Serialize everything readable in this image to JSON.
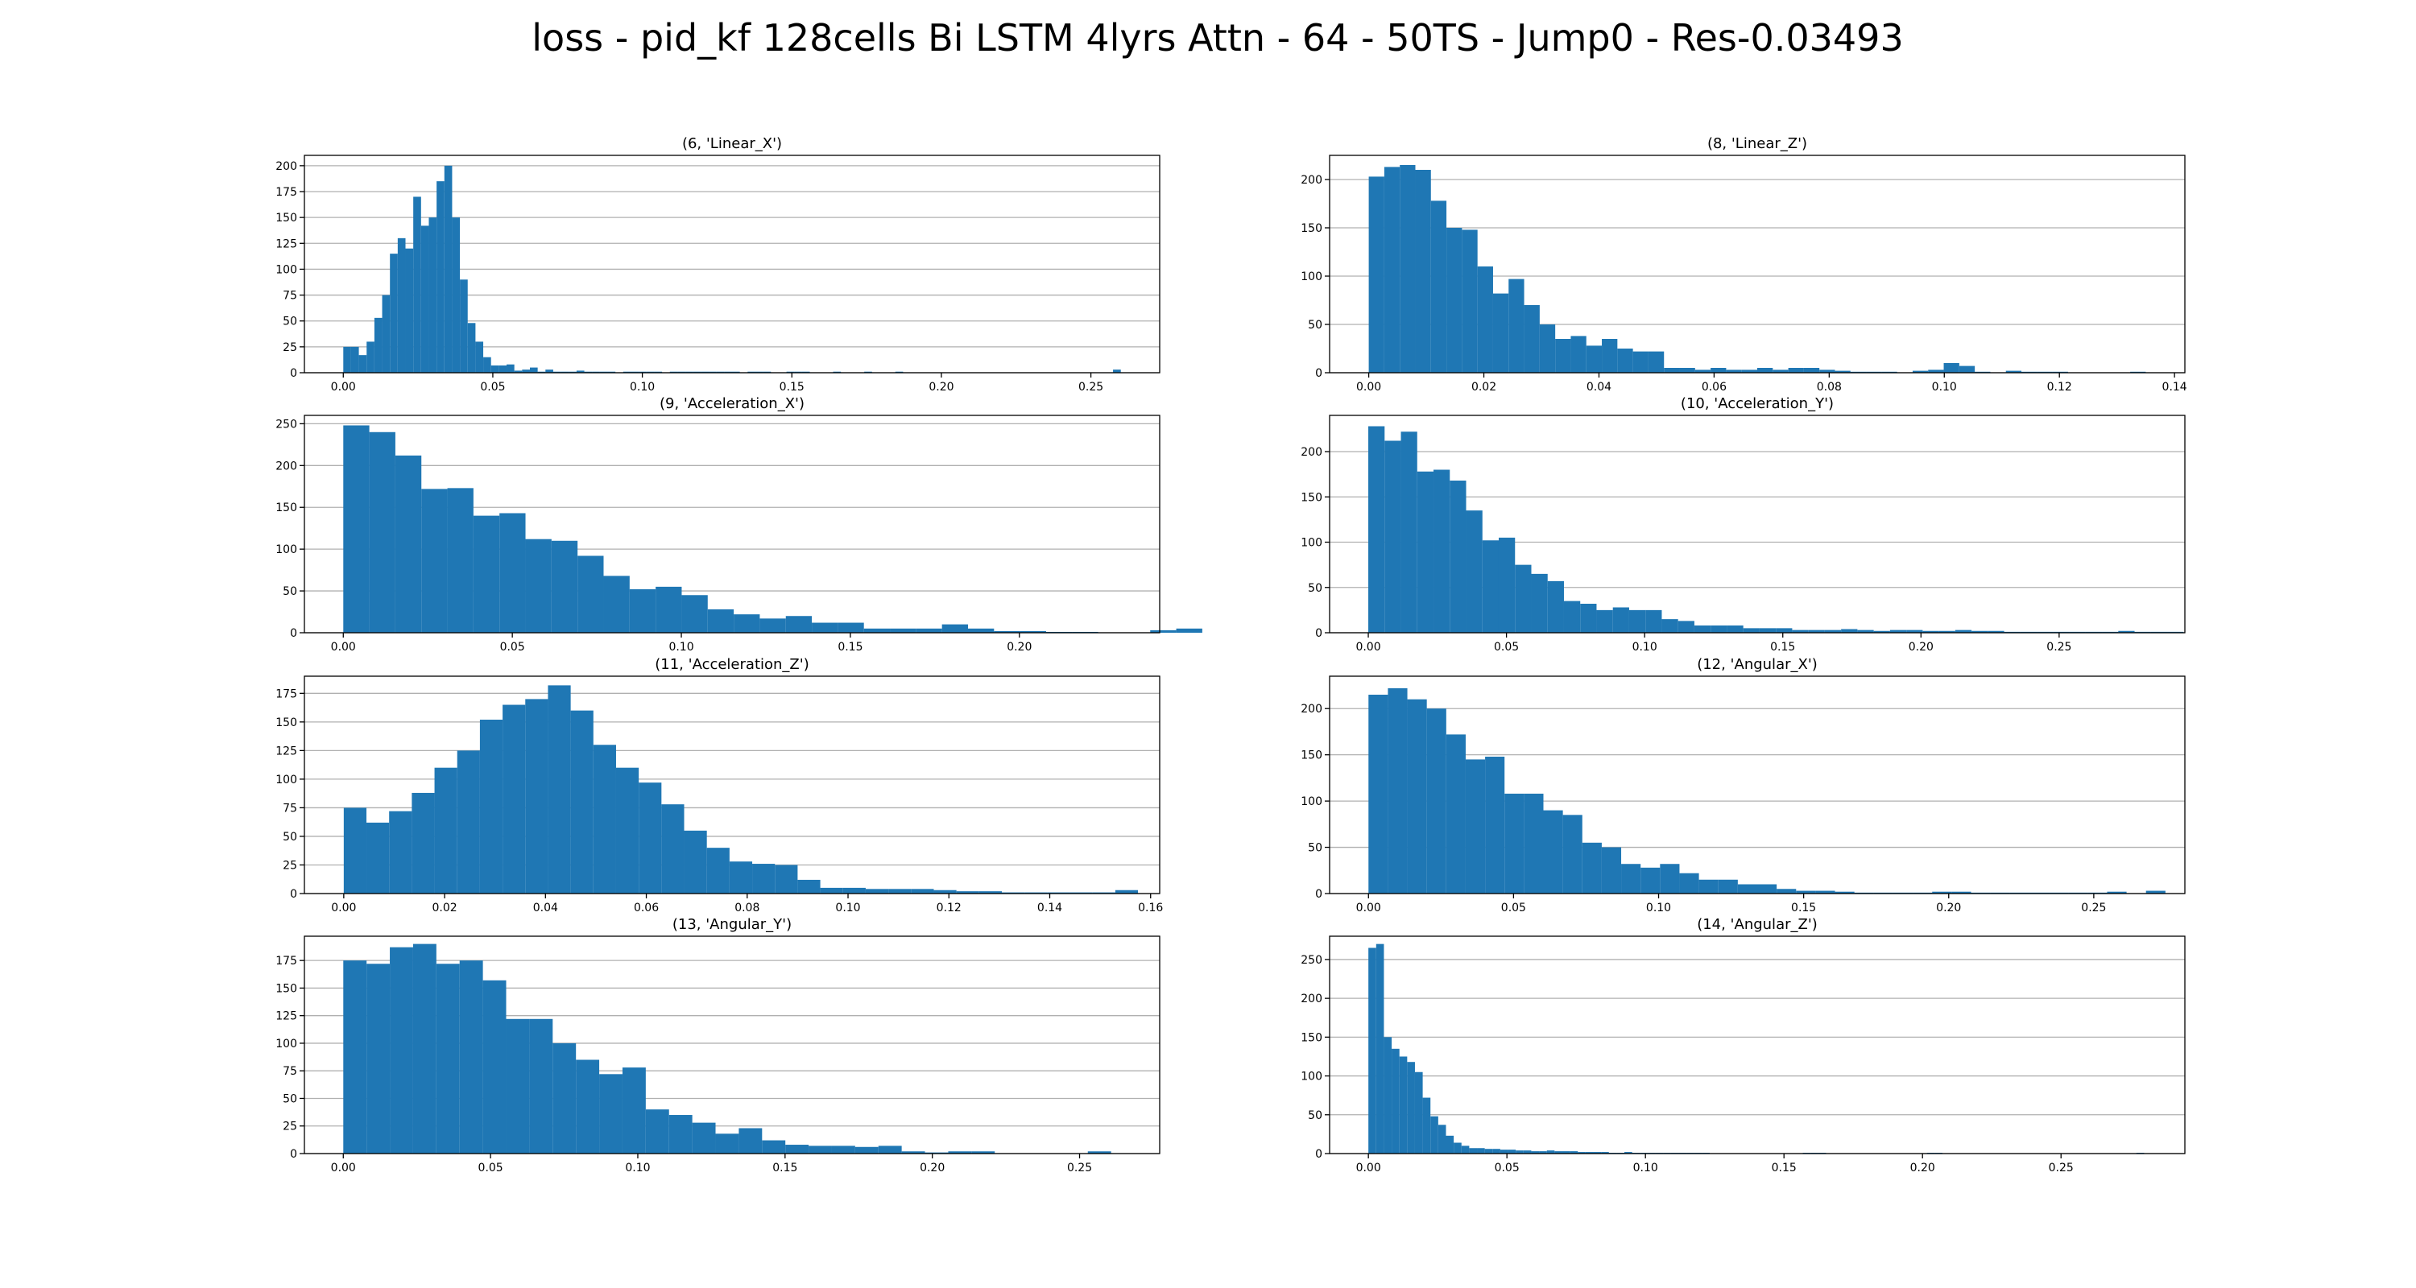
{
  "figure_title": "loss - pid_kf 128cells Bi LSTM 4lyrs Attn - 64 - 50TS - Jump0 - Res-0.03493",
  "colors": {
    "bar": "#1f77b4",
    "grid": "#b0b0b0",
    "axis": "#000000"
  },
  "chart_data": [
    {
      "type": "bar",
      "title": "(6, 'Linear_X')",
      "xlim": [
        -0.013,
        0.273
      ],
      "ylim": [
        0,
        210
      ],
      "grid": "y",
      "xticks": [
        0.0,
        0.05,
        0.1,
        0.15,
        0.2,
        0.25
      ],
      "xtick_labels": [
        "0.00",
        "0.05",
        "0.10",
        "0.15",
        "0.20",
        "0.25"
      ],
      "yticks": [
        0,
        25,
        50,
        75,
        100,
        125,
        150,
        175,
        200
      ],
      "ytick_labels": [
        "0",
        "25",
        "50",
        "75",
        "100",
        "125",
        "150",
        "175",
        "200"
      ],
      "bin_start": 0.0,
      "bin_width": 0.0026,
      "values": [
        25,
        25,
        17,
        30,
        53,
        75,
        115,
        130,
        120,
        170,
        142,
        150,
        185,
        200,
        150,
        90,
        48,
        30,
        15,
        7,
        7,
        8,
        2,
        3,
        5,
        1,
        3,
        1,
        1,
        1,
        2,
        1,
        1,
        1,
        1,
        0,
        1,
        1,
        1,
        1,
        1,
        0,
        1,
        1,
        1,
        1,
        1,
        1,
        1,
        1,
        1,
        0,
        1,
        1,
        1,
        0,
        0,
        1,
        1,
        1,
        0,
        0,
        0,
        1,
        0,
        0,
        0,
        1,
        0,
        0,
        0,
        1,
        0,
        0,
        0,
        0,
        0,
        0,
        0,
        0,
        0,
        0,
        0,
        0,
        0,
        0,
        0,
        0,
        0,
        0,
        0,
        0,
        0,
        0,
        0,
        0,
        0,
        0,
        0,
        3
      ]
    },
    {
      "type": "bar",
      "title": "(8, 'Linear_Z')",
      "xlim": [
        -0.0068,
        0.1418
      ],
      "ylim": [
        0,
        225
      ],
      "grid": "y",
      "xticks": [
        0.0,
        0.02,
        0.04,
        0.06,
        0.08,
        0.1,
        0.12,
        0.14
      ],
      "xtick_labels": [
        "0.00",
        "0.02",
        "0.04",
        "0.06",
        "0.08",
        "0.10",
        "0.12",
        "0.14"
      ],
      "yticks": [
        0,
        50,
        100,
        150,
        200
      ],
      "ytick_labels": [
        "0",
        "50",
        "100",
        "150",
        "200"
      ],
      "bin_start": 0.0,
      "bin_width": 0.0027,
      "values": [
        203,
        213,
        215,
        210,
        178,
        150,
        148,
        110,
        82,
        97,
        70,
        50,
        35,
        38,
        28,
        35,
        25,
        22,
        22,
        5,
        5,
        3,
        5,
        3,
        3,
        5,
        3,
        5,
        5,
        3,
        2,
        1,
        1,
        1,
        0,
        2,
        3,
        10,
        7,
        1,
        0,
        2,
        1,
        1,
        1,
        0,
        0,
        0,
        0,
        1
      ]
    },
    {
      "type": "bar",
      "title": "(9, 'Acceleration_X')",
      "xlim": [
        -0.0115,
        0.2415
      ],
      "ylim": [
        0,
        260
      ],
      "grid": "y",
      "xticks": [
        0.0,
        0.05,
        0.1,
        0.15,
        0.2
      ],
      "xtick_labels": [
        "0.00",
        "0.05",
        "0.10",
        "0.15",
        "0.20"
      ],
      "yticks": [
        0,
        50,
        100,
        150,
        200,
        250
      ],
      "ytick_labels": [
        "0",
        "50",
        "100",
        "150",
        "200",
        "250"
      ],
      "bin_start": 0.0,
      "bin_width": 0.0077,
      "values": [
        248,
        240,
        212,
        172,
        173,
        140,
        143,
        112,
        110,
        92,
        68,
        52,
        55,
        45,
        28,
        22,
        17,
        20,
        12,
        12,
        5,
        5,
        5,
        10,
        5,
        2,
        2,
        1,
        1,
        0,
        0,
        3,
        5
      ]
    },
    {
      "type": "bar",
      "title": "(10, 'Acceleration_Y')",
      "xlim": [
        -0.014,
        0.2955
      ],
      "ylim": [
        0,
        240
      ],
      "grid": "y",
      "xticks": [
        0.0,
        0.05,
        0.1,
        0.15,
        0.2,
        0.25
      ],
      "xtick_labels": [
        "0.00",
        "0.05",
        "0.10",
        "0.15",
        "0.20",
        "0.25"
      ],
      "yticks": [
        0,
        50,
        100,
        150,
        200
      ],
      "ytick_labels": [
        "0",
        "50",
        "100",
        "150",
        "200"
      ],
      "bin_start": 0.0,
      "bin_width": 0.0059,
      "values": [
        228,
        212,
        222,
        178,
        180,
        168,
        135,
        102,
        105,
        75,
        65,
        57,
        35,
        32,
        25,
        28,
        25,
        25,
        15,
        13,
        8,
        8,
        8,
        5,
        5,
        5,
        3,
        3,
        3,
        4,
        3,
        2,
        3,
        3,
        2,
        2,
        3,
        2,
        2,
        1,
        1,
        1,
        1,
        1,
        1,
        1,
        2,
        1,
        1,
        1
      ]
    },
    {
      "type": "bar",
      "title": "(11, 'Acceleration_Z')",
      "xlim": [
        -0.0078,
        0.1618
      ],
      "ylim": [
        0,
        190
      ],
      "grid": "y",
      "xticks": [
        0.0,
        0.02,
        0.04,
        0.06,
        0.08,
        0.1,
        0.12,
        0.14,
        0.16
      ],
      "xtick_labels": [
        "0.00",
        "0.02",
        "0.04",
        "0.06",
        "0.08",
        "0.10",
        "0.12",
        "0.14",
        "0.16"
      ],
      "yticks": [
        0,
        25,
        50,
        75,
        100,
        125,
        150,
        175
      ],
      "ytick_labels": [
        "0",
        "25",
        "50",
        "75",
        "100",
        "125",
        "150",
        "175"
      ],
      "bin_start": 0.0,
      "bin_width": 0.0045,
      "values": [
        75,
        62,
        72,
        88,
        110,
        125,
        152,
        165,
        170,
        182,
        160,
        130,
        110,
        97,
        78,
        55,
        40,
        28,
        26,
        25,
        12,
        5,
        5,
        4,
        4,
        4,
        3,
        2,
        2,
        1,
        1,
        1,
        1,
        1,
        3
      ]
    },
    {
      "type": "bar",
      "title": "(12, 'Angular_X')",
      "xlim": [
        -0.0134,
        0.2814
      ],
      "ylim": [
        0,
        235
      ],
      "grid": "y",
      "xticks": [
        0.0,
        0.05,
        0.1,
        0.15,
        0.2,
        0.25
      ],
      "xtick_labels": [
        "0.00",
        "0.05",
        "0.10",
        "0.15",
        "0.20",
        "0.25"
      ],
      "yticks": [
        0,
        50,
        100,
        150,
        200
      ],
      "ytick_labels": [
        "0",
        "50",
        "100",
        "150",
        "200"
      ],
      "bin_start": 0.0,
      "bin_width": 0.0067,
      "values": [
        215,
        222,
        210,
        200,
        172,
        145,
        148,
        108,
        108,
        90,
        85,
        55,
        50,
        32,
        28,
        32,
        22,
        15,
        15,
        10,
        10,
        5,
        3,
        3,
        2,
        1,
        1,
        1,
        1,
        2,
        2,
        1,
        1,
        1,
        1,
        1,
        1,
        1,
        2,
        0,
        3
      ]
    },
    {
      "type": "bar",
      "title": "(13, 'Angular_Y')",
      "xlim": [
        -0.0132,
        0.2772
      ],
      "ylim": [
        0,
        197
      ],
      "grid": "y",
      "xticks": [
        0.0,
        0.05,
        0.1,
        0.15,
        0.2,
        0.25
      ],
      "xtick_labels": [
        "0.00",
        "0.05",
        "0.10",
        "0.15",
        "0.20",
        "0.25"
      ],
      "yticks": [
        0,
        25,
        50,
        75,
        100,
        125,
        150,
        175
      ],
      "ytick_labels": [
        "0",
        "25",
        "50",
        "75",
        "100",
        "125",
        "150",
        "175"
      ],
      "bin_start": 0.0,
      "bin_width": 0.0079,
      "values": [
        175,
        172,
        187,
        190,
        172,
        175,
        157,
        122,
        122,
        100,
        85,
        72,
        78,
        40,
        35,
        28,
        18,
        23,
        12,
        8,
        7,
        7,
        6,
        7,
        2,
        1,
        2,
        2,
        0,
        0,
        0,
        0,
        2
      ]
    },
    {
      "type": "bar",
      "title": "(14, 'Angular_Z')",
      "xlim": [
        -0.014,
        0.2947
      ],
      "ylim": [
        0,
        280
      ],
      "grid": "y",
      "xticks": [
        0.0,
        0.05,
        0.1,
        0.15,
        0.2,
        0.25
      ],
      "xtick_labels": [
        "0.00",
        "0.05",
        "0.10",
        "0.15",
        "0.20",
        "0.25"
      ],
      "yticks": [
        0,
        50,
        100,
        150,
        200,
        250
      ],
      "ytick_labels": [
        "0",
        "50",
        "100",
        "150",
        "200",
        "250"
      ],
      "bin_start": 0.0,
      "bin_width": 0.0028,
      "values": [
        265,
        270,
        150,
        135,
        125,
        118,
        105,
        72,
        48,
        37,
        23,
        14,
        10,
        7,
        7,
        6,
        6,
        5,
        5,
        4,
        4,
        3,
        3,
        4,
        3,
        3,
        3,
        2,
        2,
        2,
        2,
        1,
        1,
        2,
        1,
        1,
        1,
        1,
        1,
        1,
        1,
        1,
        1,
        1,
        0,
        0,
        0,
        0,
        0,
        0,
        0,
        0,
        0,
        0,
        0,
        0,
        1,
        1,
        1,
        0,
        0,
        0,
        0,
        0,
        0,
        0,
        0,
        0,
        0,
        0,
        0,
        0,
        1,
        1,
        0,
        0,
        0,
        0,
        0,
        0,
        0,
        0,
        0,
        0,
        0,
        0,
        0,
        0,
        0,
        0,
        0,
        0,
        0,
        0,
        0,
        0,
        0,
        0,
        0,
        1
      ]
    }
  ]
}
